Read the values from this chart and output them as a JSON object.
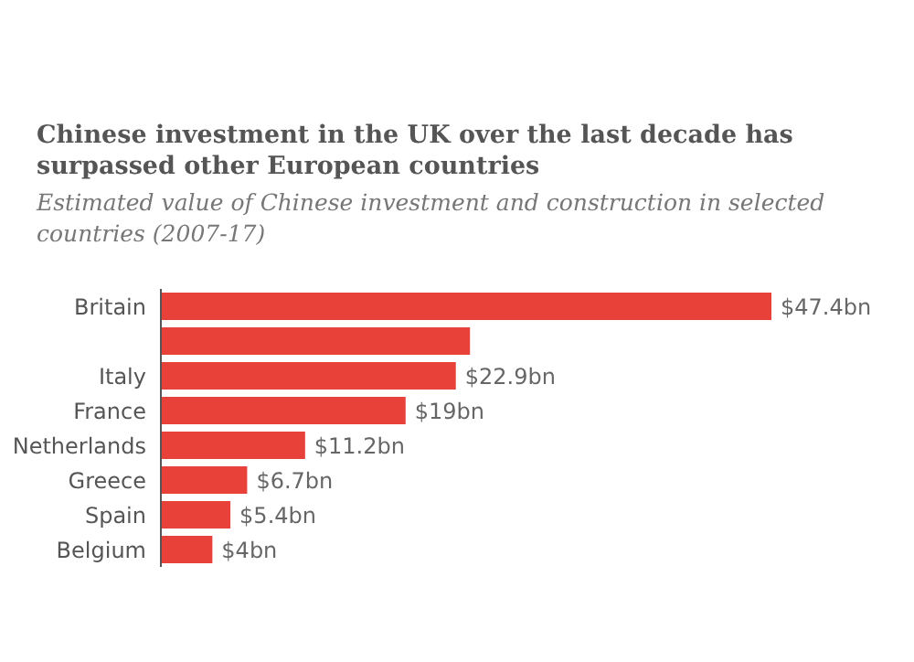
{
  "chart_data": {
    "type": "bar",
    "orientation": "horizontal",
    "title": "Chinese investment in the UK over the last decade has surpassed other European countries",
    "subtitle": "Estimated value of Chinese investment and construction in selected countries (2007-17)",
    "categories": [
      "Britain",
      null,
      "Italy",
      "France",
      "Netherlands",
      "Greece",
      "Spain",
      "Belgium"
    ],
    "values": [
      47.4,
      24,
      22.9,
      19,
      11.2,
      6.7,
      5.4,
      4
    ],
    "value_labels": [
      "$47.4bn",
      null,
      "$22.9bn",
      "$19bn",
      "$11.2bn",
      "$6.7bn",
      "$5.4bn",
      "$4bn"
    ],
    "color": "#e8413a"
  }
}
